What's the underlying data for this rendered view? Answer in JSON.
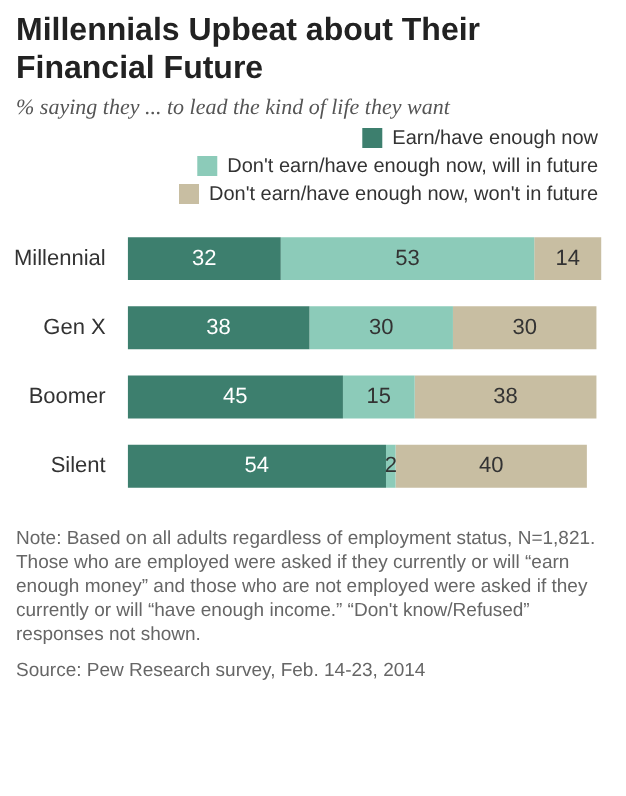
{
  "chart_data": {
    "type": "bar",
    "orientation": "horizontal",
    "stacked": true,
    "title": "Millennials Upbeat about Their Financial Future",
    "subtitle": "% saying they ... to lead the kind of life they want",
    "categories": [
      "Millennial",
      "Gen X",
      "Boomer",
      "Silent"
    ],
    "series": [
      {
        "name": "Earn/have enough now",
        "color": "#3d7f6e",
        "values": [
          32,
          38,
          45,
          54
        ]
      },
      {
        "name": "Don't earn/have enough now, will in future",
        "color": "#8ccbb9",
        "values": [
          53,
          30,
          15,
          2
        ]
      },
      {
        "name": "Don't earn/have enough now, won't in future",
        "color": "#c8bea2",
        "values": [
          14,
          30,
          38,
          40
        ]
      }
    ],
    "xlim": [
      0,
      100
    ],
    "data_labels": true,
    "legend": "top right",
    "tick_labels": "y",
    "annotations": [
      "Note: Based on all adults regardless of employment status, N=1,821. Those who are employed were asked if they currently or will “earn enough money” and those who are not employed were asked if they currently or will “have enough income.” “Don't know/Refused” responses not shown.",
      "Source: Pew Research survey, Feb. 14-23, 2014"
    ]
  }
}
